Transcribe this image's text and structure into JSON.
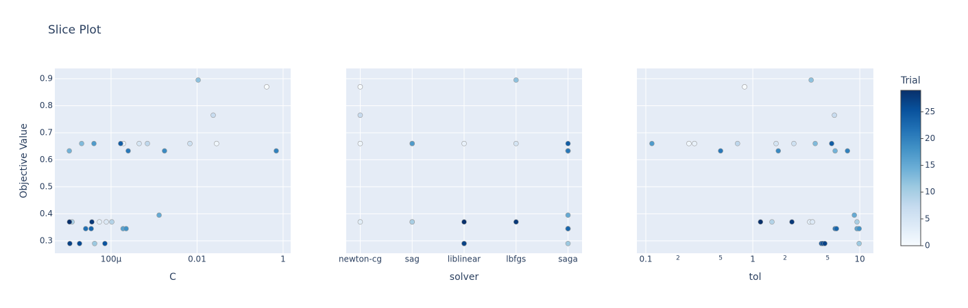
{
  "title": "Slice Plot",
  "y_axis": {
    "label": "Objective Value",
    "lim": [
      0.254,
      0.938
    ],
    "ticks": [
      0.3,
      0.4,
      0.5,
      0.6,
      0.7,
      0.8,
      0.9
    ]
  },
  "colorbar": {
    "title": "Trial",
    "lim": [
      0,
      29
    ],
    "ticks": [
      0,
      5,
      10,
      15,
      20,
      25
    ],
    "colorscale": [
      "rgb(247,251,255)",
      "rgb(222,235,247)",
      "rgb(198,219,239)",
      "rgb(158,202,225)",
      "rgb(107,174,214)",
      "rgb(66,146,198)",
      "rgb(33,113,181)",
      "rgb(8,81,156)",
      "rgb(8,48,107)"
    ]
  },
  "chart_data": [
    {
      "type": "scatter",
      "xlabel": "C",
      "log_x": true,
      "xlim": [
        4.93e-06,
        1.5
      ],
      "xticks": [
        {
          "value": 0.0001,
          "label": "100μ"
        },
        0.01,
        1
      ],
      "x": [
        0.415,
        0.0284,
        0.000194,
        5.36e-05,
        7.73e-05,
        0.00045,
        0.00681,
        0.0237,
        0.0007,
        0.000104,
        1.24e-05,
        4.15e-05,
        0.0106,
        2.07e-05,
        1.07e-05,
        0.00131,
        0.00019,
        4e-05,
        0.000224,
        0.00175,
        0.693,
        0.00025,
        2.57e-05,
        3.45e-05,
        0.000167,
        7.19e-05,
        1.85e-05,
        1.1e-05,
        3.58e-05,
        1.08e-05
      ],
      "values": [
        0.87,
        0.66,
        0.66,
        0.37,
        0.37,
        0.66,
        0.66,
        0.765,
        0.66,
        0.37,
        0.37,
        0.29,
        0.895,
        0.66,
        0.633,
        0.395,
        0.345,
        0.66,
        0.345,
        0.633,
        0.633,
        0.633,
        0.345,
        0.345,
        0.66,
        0.29,
        0.29,
        0.29,
        0.37,
        0.37
      ],
      "trial": [
        0,
        1,
        2,
        3,
        4,
        5,
        6,
        7,
        8,
        9,
        10,
        11,
        12,
        13,
        14,
        15,
        16,
        17,
        18,
        19,
        20,
        21,
        22,
        23,
        24,
        25,
        26,
        27,
        28,
        29
      ]
    },
    {
      "type": "scatter",
      "xlabel": "solver",
      "categories": [
        "newton-cg",
        "sag",
        "liblinear",
        "lbfgs",
        "saga"
      ],
      "x": [
        "newton-cg",
        "newton-cg",
        "liblinear",
        "newton-cg",
        "sag",
        "lbfgs",
        "sag",
        "newton-cg",
        "sag",
        "sag",
        "sag",
        "saga",
        "lbfgs",
        "sag",
        "saga",
        "saga",
        "saga",
        "sag",
        "saga",
        "saga",
        "saga",
        "saga",
        "saga",
        "saga",
        "saga",
        "liblinear",
        "liblinear",
        "liblinear",
        "lbfgs",
        "liblinear"
      ],
      "values": [
        0.87,
        0.66,
        0.66,
        0.37,
        0.37,
        0.66,
        0.66,
        0.765,
        0.66,
        0.37,
        0.37,
        0.29,
        0.895,
        0.66,
        0.633,
        0.395,
        0.345,
        0.66,
        0.345,
        0.633,
        0.633,
        0.633,
        0.345,
        0.345,
        0.66,
        0.29,
        0.29,
        0.29,
        0.37,
        0.37
      ],
      "trial": [
        0,
        1,
        2,
        3,
        4,
        5,
        6,
        7,
        8,
        9,
        10,
        11,
        12,
        13,
        14,
        15,
        16,
        17,
        18,
        19,
        20,
        21,
        22,
        23,
        24,
        25,
        26,
        27,
        28,
        29
      ]
    },
    {
      "type": "scatter",
      "xlabel": "tol",
      "log_x": true,
      "xlim": [
        0.0825,
        13.4
      ],
      "xticks": [
        0.1,
        {
          "value": 0.2,
          "label": "2"
        },
        {
          "value": 0.5,
          "label": "5"
        },
        1,
        {
          "value": 2,
          "label": "2"
        },
        {
          "value": 5,
          "label": "5"
        },
        10
      ],
      "x": [
        0.838,
        0.253,
        0.285,
        3.4,
        3.61,
        1.65,
        2.42,
        5.79,
        0.72,
        1.51,
        9.42,
        9.86,
        3.51,
        3.83,
        5.88,
        8.89,
        9.42,
        0.114,
        9.86,
        1.73,
        7.67,
        0.5,
        5.88,
        6.05,
        5.46,
        4.38,
        4.51,
        4.71,
        2.32,
        1.18
      ],
      "values": [
        0.87,
        0.66,
        0.66,
        0.37,
        0.37,
        0.66,
        0.66,
        0.765,
        0.66,
        0.37,
        0.37,
        0.29,
        0.895,
        0.66,
        0.633,
        0.395,
        0.345,
        0.66,
        0.345,
        0.633,
        0.633,
        0.633,
        0.345,
        0.345,
        0.66,
        0.29,
        0.29,
        0.29,
        0.37,
        0.37
      ],
      "trial": [
        0,
        1,
        2,
        3,
        4,
        5,
        6,
        7,
        8,
        9,
        10,
        11,
        12,
        13,
        14,
        15,
        16,
        17,
        18,
        19,
        20,
        21,
        22,
        23,
        24,
        25,
        26,
        27,
        28,
        29
      ]
    }
  ]
}
